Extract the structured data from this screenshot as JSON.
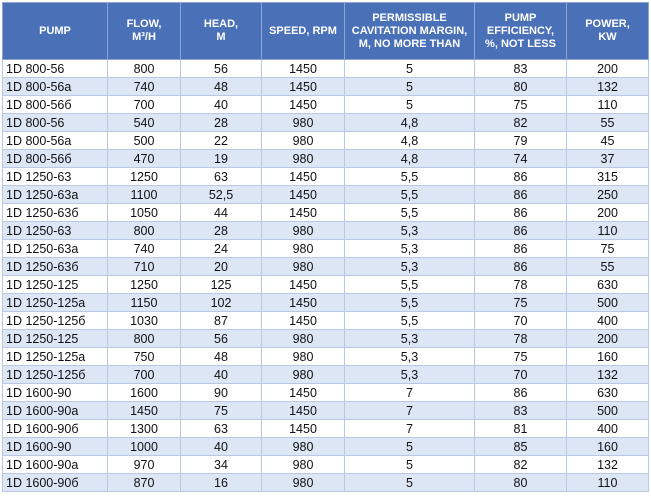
{
  "table": {
    "header": [
      [
        "PUMP"
      ],
      [
        "FLOW,",
        "M³/H"
      ],
      [
        "HEAD,",
        "M"
      ],
      [
        "SPEED, RPM"
      ],
      [
        "PERMISSIBLE",
        "CAVITATION MARGIN,",
        "M, NO MORE THAN"
      ],
      [
        "PUMP",
        "EFFICIENCY,",
        "%, NOT LESS"
      ],
      [
        "POWER,",
        "KW"
      ]
    ],
    "rows": [
      [
        "1D 800-56",
        "800",
        "56",
        "1450",
        "5",
        "83",
        "200"
      ],
      [
        "1D 800-56a",
        "740",
        "48",
        "1450",
        "5",
        "80",
        "132"
      ],
      [
        "1D 800-56б",
        "700",
        "40",
        "1450",
        "5",
        "75",
        "110"
      ],
      [
        "1D 800-56",
        "540",
        "28",
        "980",
        "4,8",
        "82",
        "55"
      ],
      [
        "1D 800-56a",
        "500",
        "22",
        "980",
        "4,8",
        "79",
        "45"
      ],
      [
        "1D 800-56б",
        "470",
        "19",
        "980",
        "4,8",
        "74",
        "37"
      ],
      [
        "1D 1250-63",
        "1250",
        "63",
        "1450",
        "5,5",
        "86",
        "315"
      ],
      [
        "1D 1250-63a",
        "1100",
        "52,5",
        "1450",
        "5,5",
        "86",
        "250"
      ],
      [
        "1D 1250-63б",
        "1050",
        "44",
        "1450",
        "5,5",
        "86",
        "200"
      ],
      [
        "1D 1250-63",
        "800",
        "28",
        "980",
        "5,3",
        "86",
        "110"
      ],
      [
        "1D 1250-63a",
        "740",
        "24",
        "980",
        "5,3",
        "86",
        "75"
      ],
      [
        "1D 1250-63б",
        "710",
        "20",
        "980",
        "5,3",
        "86",
        "55"
      ],
      [
        "1D 1250-125",
        "1250",
        "125",
        "1450",
        "5,5",
        "78",
        "630"
      ],
      [
        "1D 1250-125a",
        "1150",
        "102",
        "1450",
        "5,5",
        "75",
        "500"
      ],
      [
        "1D 1250-125б",
        "1030",
        "87",
        "1450",
        "5,5",
        "70",
        "400"
      ],
      [
        "1D 1250-125",
        "800",
        "56",
        "980",
        "5,3",
        "78",
        "200"
      ],
      [
        "1D 1250-125a",
        "750",
        "48",
        "980",
        "5,3",
        "75",
        "160"
      ],
      [
        "1D 1250-125б",
        "700",
        "40",
        "980",
        "5,3",
        "70",
        "132"
      ],
      [
        "1D 1600-90",
        "1600",
        "90",
        "1450",
        "7",
        "86",
        "630"
      ],
      [
        "1D 1600-90a",
        "1450",
        "75",
        "1450",
        "7",
        "83",
        "500"
      ],
      [
        "1D 1600-90б",
        "1300",
        "63",
        "1450",
        "7",
        "81",
        "400"
      ],
      [
        "1D 1600-90",
        "1000",
        "40",
        "980",
        "5",
        "85",
        "160"
      ],
      [
        "1D 1600-90a",
        "970",
        "34",
        "980",
        "5",
        "82",
        "132"
      ],
      [
        "1D 1600-90б",
        "870",
        "16",
        "980",
        "5",
        "80",
        "110"
      ]
    ]
  }
}
